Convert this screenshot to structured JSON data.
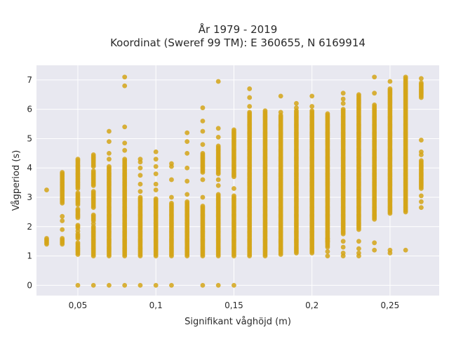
{
  "chart_data": {
    "type": "scatter",
    "title_lines": [
      "År 1979 - 2019",
      "Koordinat (Sweref 99 TM): E 360655, N 6169914"
    ],
    "xlabel": "Signifikant våghöjd (m)",
    "ylabel": "Vågperiod (s)",
    "xlim": [
      0.0235,
      0.2815
    ],
    "ylim": [
      -0.35,
      7.5
    ],
    "xticks": [
      0.05,
      0.1,
      0.15,
      0.2,
      0.25
    ],
    "xtick_labels": [
      "0,05",
      "0,1",
      "0,15",
      "0,2",
      "0,25"
    ],
    "yticks": [
      0,
      1,
      2,
      3,
      4,
      5,
      6,
      7
    ],
    "ytick_labels": [
      "0",
      "1",
      "2",
      "3",
      "4",
      "5",
      "6",
      "7"
    ],
    "grid": true,
    "marker_color": "#d4a417",
    "plot_background": "#e8e8f0",
    "columns": [
      {
        "x": 0.03,
        "bands": [
          [
            1.4,
            1.6
          ]
        ],
        "points": [
          3.25
        ]
      },
      {
        "x": 0.04,
        "bands": [
          [
            1.4,
            1.6
          ],
          [
            2.8,
            3.85
          ]
        ],
        "points": [
          1.9,
          2.2,
          2.35
        ]
      },
      {
        "x": 0.05,
        "bands": [
          [
            1.05,
            1.45
          ],
          [
            1.6,
            1.75
          ],
          [
            1.95,
            2.05
          ],
          [
            2.3,
            2.6
          ],
          [
            2.75,
            3.15
          ],
          [
            3.3,
            4.3
          ]
        ],
        "points": [
          0.0,
          1.85
        ]
      },
      {
        "x": 0.06,
        "bands": [
          [
            1.0,
            2.0
          ],
          [
            2.2,
            2.4
          ],
          [
            2.65,
            3.2
          ],
          [
            3.4,
            3.9
          ],
          [
            4.05,
            4.45
          ]
        ],
        "points": [
          0.0,
          2.1
        ]
      },
      {
        "x": 0.07,
        "bands": [
          [
            1.0,
            4.05
          ]
        ],
        "points": [
          0.0,
          4.3,
          4.5,
          4.9,
          5.25
        ]
      },
      {
        "x": 0.08,
        "bands": [
          [
            1.0,
            4.3
          ]
        ],
        "points": [
          0.0,
          4.6,
          4.85,
          5.4,
          6.8,
          7.1
        ]
      },
      {
        "x": 0.09,
        "bands": [
          [
            1.0,
            3.0
          ]
        ],
        "points": [
          0.0,
          3.2,
          3.45,
          3.75,
          4.0,
          4.2,
          4.3
        ]
      },
      {
        "x": 0.1,
        "bands": [
          [
            1.0,
            2.95
          ]
        ],
        "points": [
          0.0,
          3.25,
          3.45,
          3.8,
          4.05,
          4.3,
          4.55
        ]
      },
      {
        "x": 0.11,
        "bands": [
          [
            1.0,
            2.8
          ]
        ],
        "points": [
          0.0,
          3.0,
          3.6,
          4.05,
          4.15
        ]
      },
      {
        "x": 0.12,
        "bands": [
          [
            1.0,
            2.85
          ]
        ],
        "points": [
          3.1,
          3.55,
          4.0,
          4.5,
          4.9,
          5.2
        ]
      },
      {
        "x": 0.13,
        "bands": [
          [
            1.0,
            2.7
          ],
          [
            3.85,
            4.5
          ]
        ],
        "points": [
          0.0,
          3.0,
          3.6,
          4.8,
          5.25,
          5.6,
          6.05
        ]
      },
      {
        "x": 0.14,
        "bands": [
          [
            1.0,
            3.1
          ],
          [
            3.8,
            4.75
          ]
        ],
        "points": [
          0.0,
          3.4,
          3.6,
          5.05,
          5.35,
          6.95
        ]
      },
      {
        "x": 0.15,
        "bands": [
          [
            1.0,
            3.05
          ],
          [
            3.7,
            5.3
          ]
        ],
        "points": [
          0.0,
          3.3
        ]
      },
      {
        "x": 0.16,
        "bands": [
          [
            1.0,
            5.9
          ]
        ],
        "points": [
          6.1,
          6.4,
          6.7
        ]
      },
      {
        "x": 0.17,
        "bands": [
          [
            1.0,
            5.95
          ]
        ],
        "points": []
      },
      {
        "x": 0.18,
        "bands": [
          [
            1.05,
            5.8
          ]
        ],
        "points": [
          5.9,
          6.45
        ]
      },
      {
        "x": 0.19,
        "bands": [
          [
            1.1,
            5.95
          ]
        ],
        "points": [
          6.05,
          6.2
        ]
      },
      {
        "x": 0.2,
        "bands": [
          [
            1.1,
            5.95
          ]
        ],
        "points": [
          6.1,
          6.45
        ]
      },
      {
        "x": 0.21,
        "bands": [
          [
            1.3,
            5.85
          ]
        ],
        "points": [
          1.0,
          1.15,
          1.5,
          1.6
        ]
      },
      {
        "x": 0.22,
        "bands": [
          [
            1.75,
            6.0
          ]
        ],
        "points": [
          1.0,
          1.1,
          1.3,
          1.5,
          6.2,
          6.35,
          6.55
        ]
      },
      {
        "x": 0.23,
        "bands": [
          [
            1.9,
            6.5
          ]
        ],
        "points": [
          1.0,
          1.1,
          1.25,
          1.5
        ]
      },
      {
        "x": 0.24,
        "bands": [
          [
            2.25,
            6.15
          ]
        ],
        "points": [
          1.2,
          1.45,
          6.55,
          7.1
        ]
      },
      {
        "x": 0.25,
        "bands": [
          [
            2.45,
            6.7
          ]
        ],
        "points": [
          1.1,
          1.2,
          6.95
        ]
      },
      {
        "x": 0.26,
        "bands": [
          [
            2.5,
            7.1
          ]
        ],
        "points": [
          1.2
        ]
      },
      {
        "x": 0.27,
        "bands": [
          [
            3.3,
            4.25
          ],
          [
            6.4,
            6.9
          ]
        ],
        "points": [
          2.65,
          2.85,
          3.05,
          4.45,
          4.55,
          4.95,
          7.05
        ]
      }
    ]
  }
}
